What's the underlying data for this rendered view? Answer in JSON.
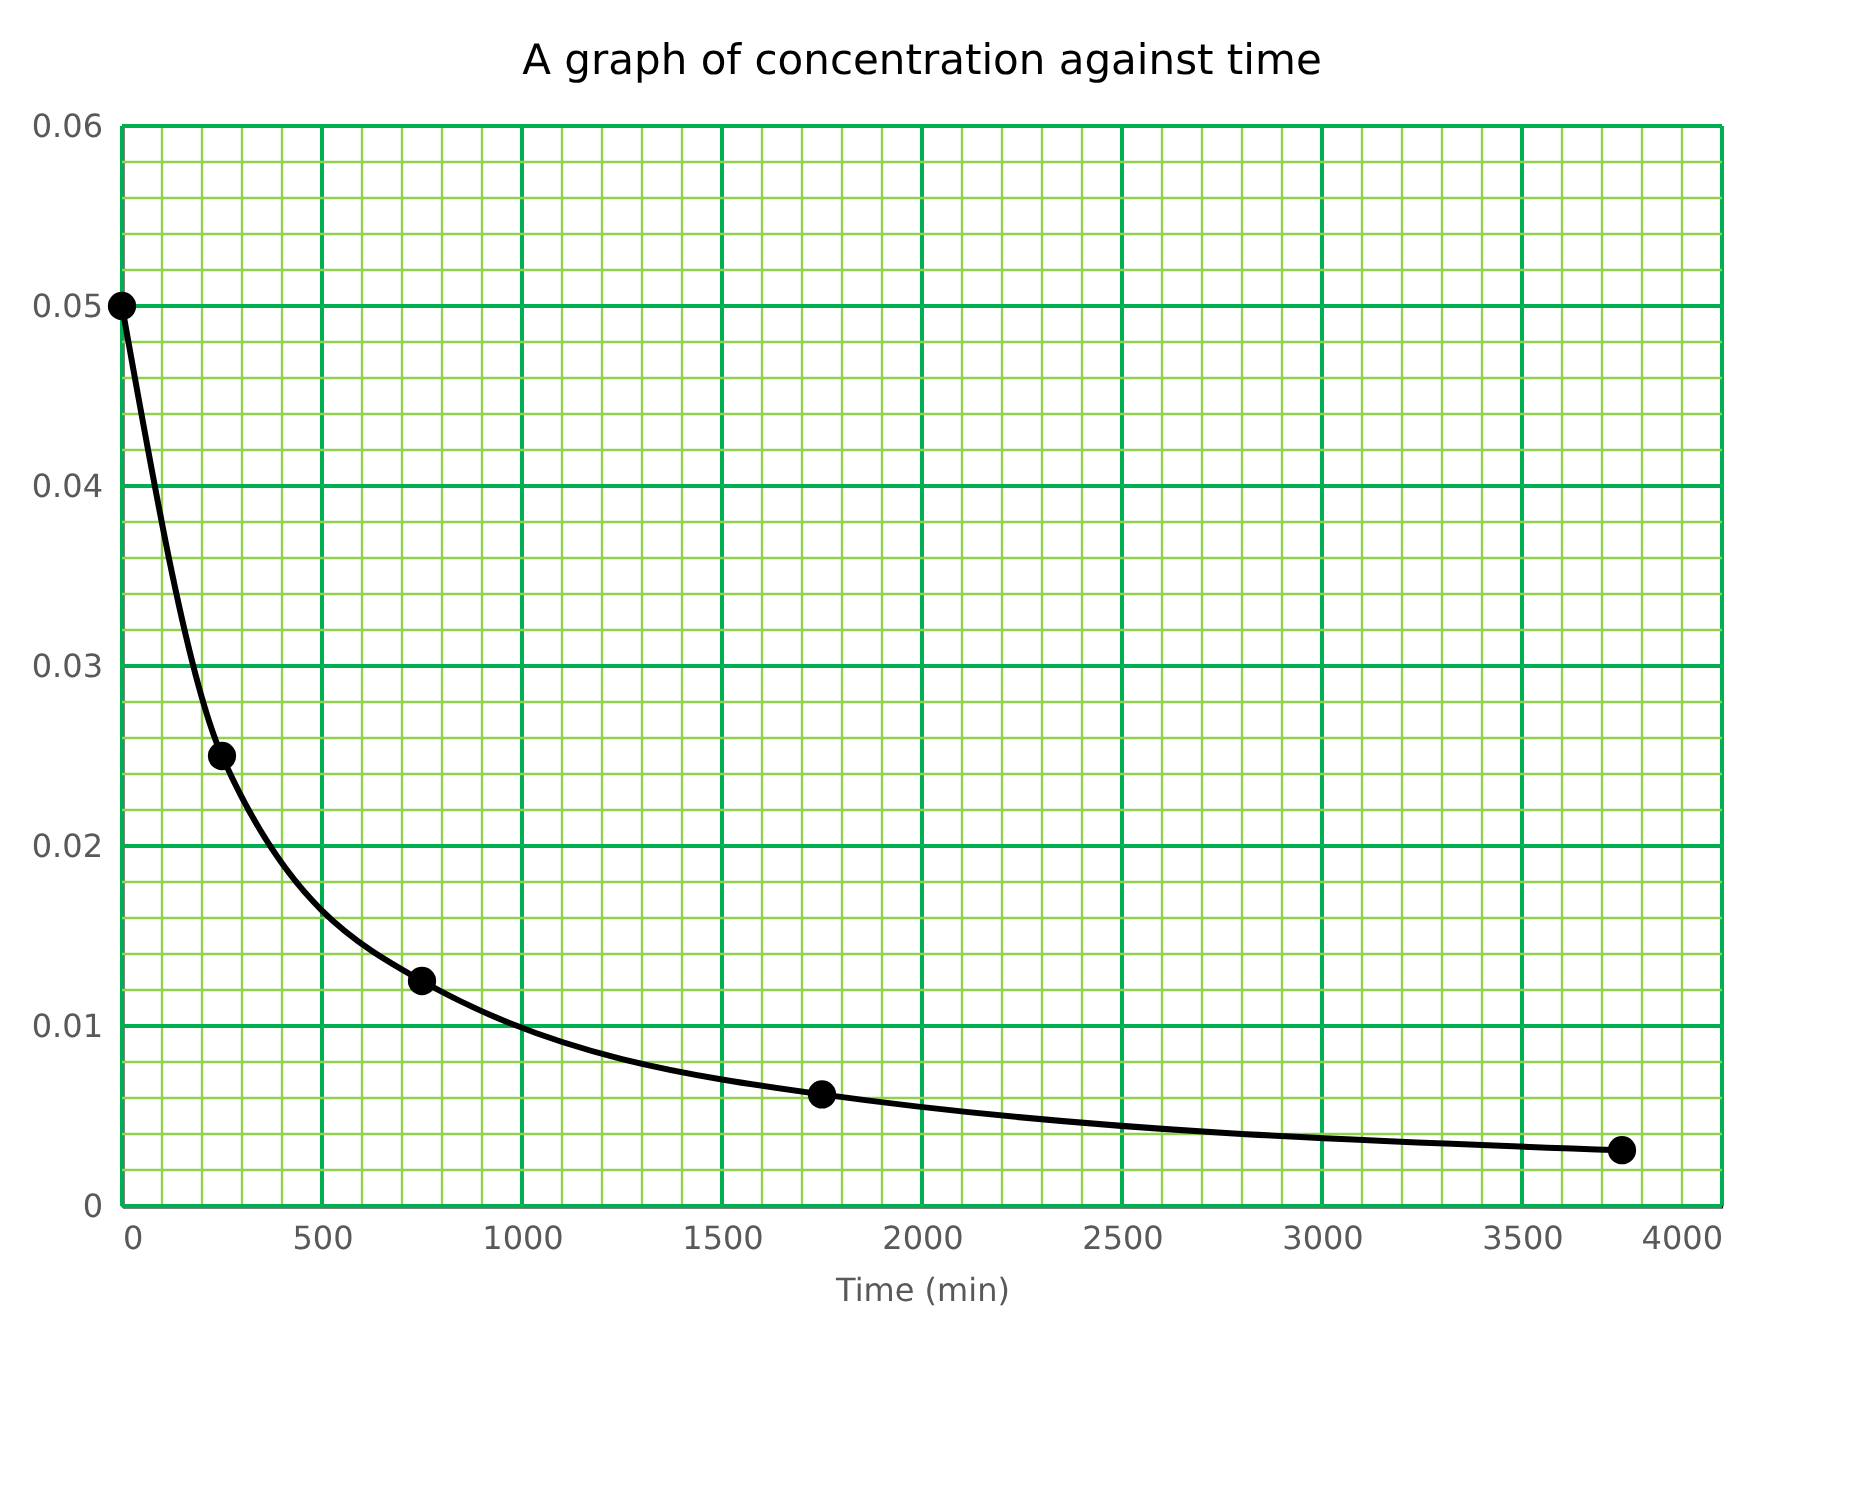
{
  "chart_data": {
    "type": "line",
    "title": "A graph of concentration against time",
    "xlabel": "Time (min)",
    "x": [
      0,
      250,
      750,
      1750,
      3750
    ],
    "series": [
      {
        "color": "#000000",
        "values": [
          0.05,
          0.025,
          0.0125,
          0.0062,
          0.0031
        ]
      }
    ],
    "xlim": [
      0,
      4000
    ],
    "ylim": [
      0,
      0.06
    ],
    "xticks": [
      0,
      {
        "value": 100,
        "label": null
      },
      {
        "value": 200,
        "label": null
      },
      {
        "value": 300,
        "label": null
      },
      {
        "value": 400,
        "label": null
      },
      500,
      {
        "value": 600,
        "label": null
      },
      {
        "value": 700,
        "label": null
      },
      {
        "value": 800,
        "label": null
      },
      {
        "value": 900,
        "label": null
      },
      1000,
      {
        "value": 1100,
        "label": null
      },
      {
        "value": 1200,
        "label": null
      },
      {
        "value": 1300,
        "label": null
      },
      {
        "value": 1400,
        "label": null
      },
      1500,
      {
        "value": 1600,
        "label": null
      },
      {
        "value": 1700,
        "label": null
      },
      {
        "value": 1800,
        "label": null
      },
      {
        "value": 1900,
        "label": null
      },
      2000,
      {
        "value": 2100,
        "label": null
      },
      {
        "value": 2200,
        "label": null
      },
      {
        "value": 2300,
        "label": null
      },
      {
        "value": 2400,
        "label": null
      },
      2500,
      {
        "value": 2600,
        "label": null
      },
      {
        "value": 2700,
        "label": null
      },
      {
        "value": 2800,
        "label": null
      },
      {
        "value": 2900,
        "label": null
      },
      3000,
      {
        "value": 3100,
        "label": null
      },
      {
        "value": 3200,
        "label": null
      },
      {
        "value": 3300,
        "label": null
      },
      {
        "value": 3400,
        "label": null
      },
      3500,
      {
        "value": 3600,
        "label": null
      },
      {
        "value": 3700,
        "label": null
      },
      {
        "value": 3800,
        "label": null
      },
      {
        "value": 3900,
        "label": null
      },
      4000
    ],
    "yticks": [
      0,
      {
        "value": 0.002,
        "label": null
      },
      {
        "value": 0.004,
        "label": null
      },
      {
        "value": 0.006,
        "label": null
      },
      {
        "value": 0.008,
        "label": null
      },
      0.01,
      {
        "value": 0.012,
        "label": null
      },
      {
        "value": 0.014,
        "label": null
      },
      {
        "value": 0.016,
        "label": null
      },
      {
        "value": 0.018,
        "label": null
      },
      0.02,
      {
        "value": 0.022,
        "label": null
      },
      {
        "value": 0.024,
        "label": null
      },
      {
        "value": 0.026,
        "label": null
      },
      {
        "value": 0.028,
        "label": null
      },
      0.03,
      {
        "value": 0.032,
        "label": null
      },
      {
        "value": 0.034,
        "label": null
      },
      {
        "value": 0.036,
        "label": null
      },
      {
        "value": 0.038,
        "label": null
      },
      0.04,
      {
        "value": 0.042,
        "label": null
      },
      {
        "value": 0.044,
        "label": null
      },
      {
        "value": 0.046,
        "label": null
      },
      {
        "value": 0.048,
        "label": null
      },
      0.05,
      {
        "value": 0.052,
        "label": null
      },
      {
        "value": 0.054,
        "label": null
      },
      {
        "value": 0.056,
        "label": null
      },
      {
        "value": 0.058,
        "label": null
      },
      0.06
    ],
    "grid": true,
    "marker": "circle",
    "line_style": "solid"
  }
}
